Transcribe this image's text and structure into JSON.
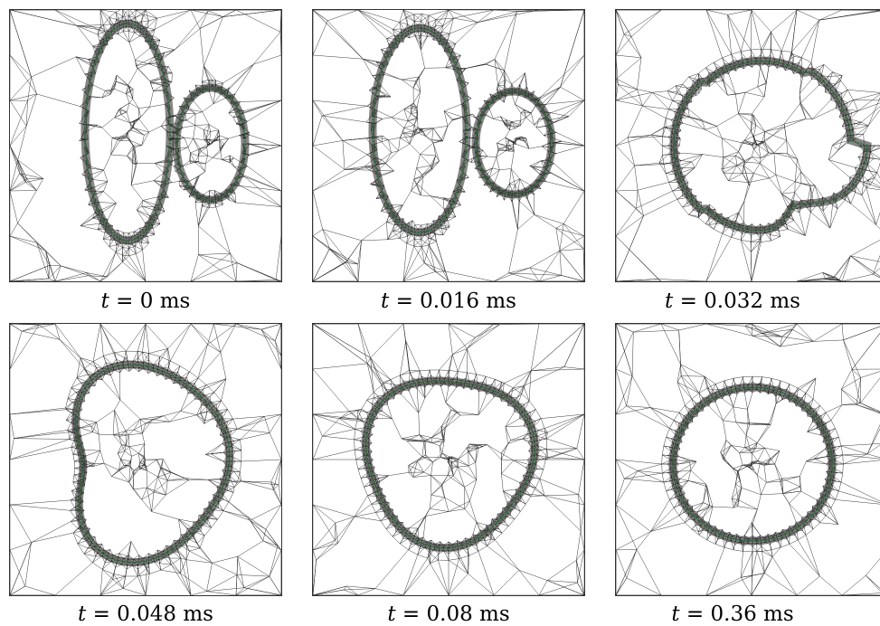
{
  "figure": {
    "panels": [
      {
        "id": "p1",
        "time_value": "0",
        "unit": "ms",
        "blobs": 2,
        "stage": "separate"
      },
      {
        "id": "p2",
        "time_value": "0.016",
        "unit": "ms",
        "blobs": 2,
        "stage": "touching"
      },
      {
        "id": "p3",
        "time_value": "0.032",
        "unit": "ms",
        "blobs": 1,
        "stage": "merging-neck"
      },
      {
        "id": "p4",
        "time_value": "0.048",
        "unit": "ms",
        "blobs": 1,
        "stage": "pear"
      },
      {
        "id": "p5",
        "time_value": "0.08",
        "unit": "ms",
        "blobs": 1,
        "stage": "rounding"
      },
      {
        "id": "p6",
        "time_value": "0.36",
        "unit": "ms",
        "blobs": 1,
        "stage": "circle"
      }
    ],
    "mesh_color": "#222222",
    "interface_color": "#2e6b34",
    "time_symbol": "t"
  }
}
